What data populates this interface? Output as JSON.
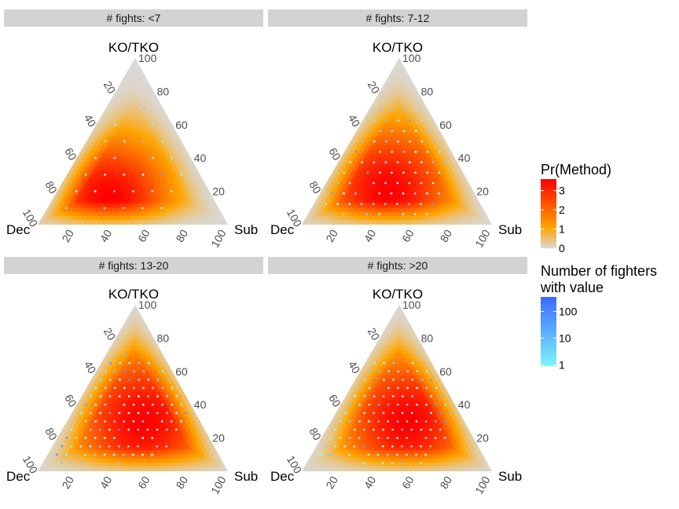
{
  "chart_data": [
    {
      "type": "ternary-heatmap",
      "facet_label": "# fights: <7",
      "vertex_labels": {
        "top": "KO/TKO",
        "left": "Dec",
        "right": "Sub"
      },
      "ticks": [
        "20",
        "40",
        "60",
        "80",
        "100"
      ],
      "fill_peak": [
        15,
        55,
        30
      ],
      "fill_spread": 0.34,
      "points_center": [
        0.4,
        0.32,
        0.28
      ],
      "points_count": 70
    },
    {
      "type": "ternary-heatmap",
      "facet_label": "# fights: 7-12",
      "vertex_labels": {
        "top": "KO/TKO",
        "left": "Dec",
        "right": "Sub"
      },
      "ticks": [
        "20",
        "40",
        "60",
        "80",
        "100"
      ],
      "fill_peak": [
        20,
        45,
        35
      ],
      "fill_spread": 0.36,
      "points_center": [
        0.38,
        0.32,
        0.3
      ],
      "points_count": 260
    },
    {
      "type": "ternary-heatmap",
      "facet_label": "# fights: 13-20",
      "vertex_labels": {
        "top": "KO/TKO",
        "left": "Dec",
        "right": "Sub"
      },
      "ticks": [
        "20",
        "40",
        "60",
        "80",
        "100"
      ],
      "fill_peak": [
        30,
        30,
        40
      ],
      "fill_spread": 0.38,
      "points_center": [
        0.37,
        0.33,
        0.3
      ],
      "points_count": 420
    },
    {
      "type": "ternary-heatmap",
      "facet_label": "# fights: >20",
      "vertex_labels": {
        "top": "KO/TKO",
        "left": "Dec",
        "right": "Sub"
      },
      "ticks": [
        "20",
        "40",
        "60",
        "80",
        "100"
      ],
      "fill_peak": [
        30,
        30,
        40
      ],
      "fill_spread": 0.36,
      "points_center": [
        0.38,
        0.3,
        0.32
      ],
      "points_count": 330
    }
  ],
  "legend": {
    "fill": {
      "title": "Pr(Method)",
      "ticks": [
        "0",
        "1",
        "2",
        "3"
      ],
      "range": [
        0,
        3.6
      ],
      "colors": [
        "#d9d9d9",
        "#ffa500",
        "#ff0000"
      ]
    },
    "points": {
      "title_line1": "Number of fighters",
      "title_line2": "with value",
      "ticks": [
        "1",
        "10",
        "100"
      ],
      "log_range": [
        0.9,
        350
      ],
      "colors": [
        "#7ff3ff",
        "#3a6bff"
      ]
    }
  }
}
